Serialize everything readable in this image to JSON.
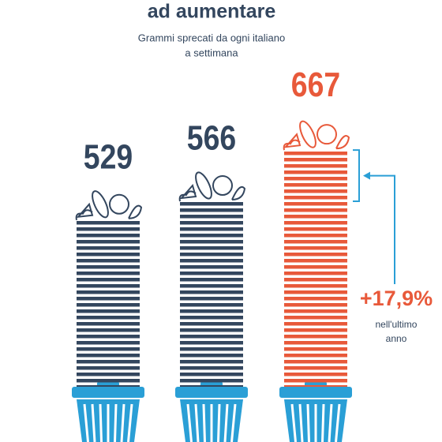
{
  "chart_data": {
    "type": "bar",
    "title": "ad aumentare",
    "subtitle": [
      "Grammi sprecati da ogni italiano",
      "a settimana"
    ],
    "values": [
      529,
      566,
      667
    ],
    "colors": [
      "#33465e",
      "#33465e",
      "#e8593a"
    ],
    "ylim": [
      200,
      700
    ],
    "annotation": "+17,9%",
    "annotation_note": [
      "nell'ultimo",
      "anno"
    ]
  }
}
